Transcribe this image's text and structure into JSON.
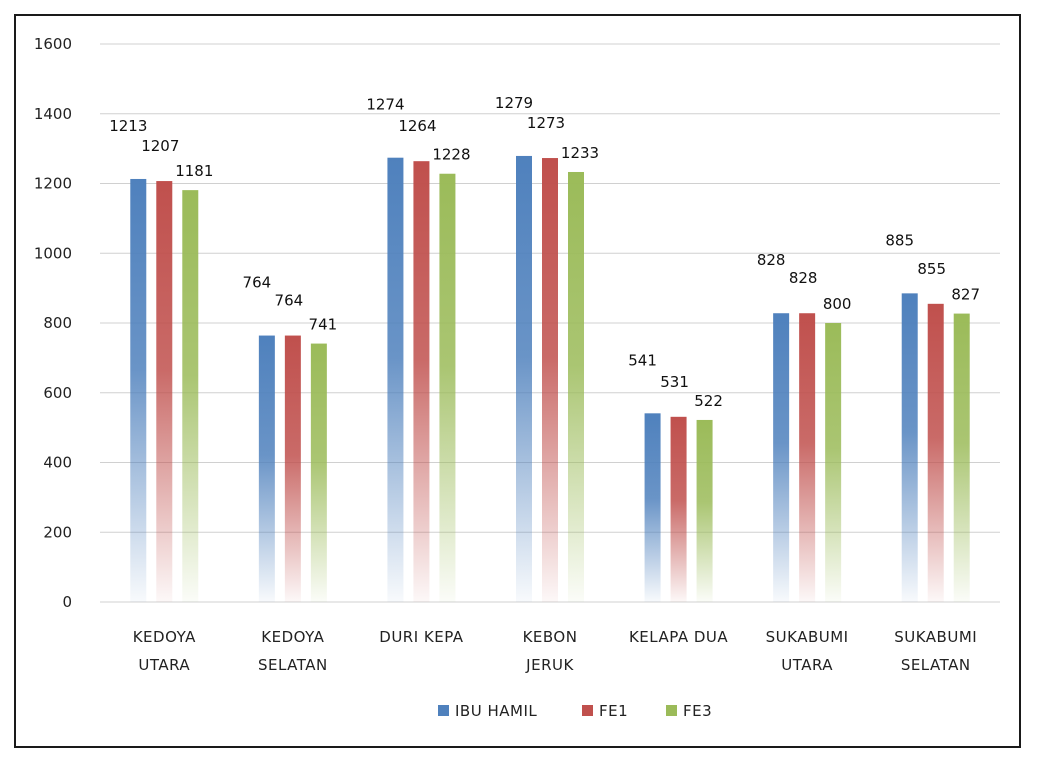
{
  "chart_data": {
    "type": "bar",
    "title": "",
    "xlabel": "",
    "ylabel": "",
    "ylim": [
      0,
      1600
    ],
    "yticks": [
      "0",
      "200",
      "400",
      "600",
      "800",
      "1000",
      "1200",
      "1400",
      "1600"
    ],
    "grid": true,
    "legend_position": "bottom",
    "categories": [
      [
        "KEDOYA",
        "UTARA"
      ],
      [
        "KEDOYA",
        "SELATAN"
      ],
      [
        "DURI KEPA"
      ],
      [
        "KEBON",
        "JERUK"
      ],
      [
        "KELAPA DUA"
      ],
      [
        "SUKABUMI",
        "UTARA"
      ],
      [
        "SUKABUMI",
        "SELATAN"
      ]
    ],
    "series": [
      {
        "name": "IBU HAMIL",
        "color": "#4f81bd",
        "values": [
          1213,
          764,
          1274,
          1279,
          541,
          828,
          885
        ]
      },
      {
        "name": "FE1",
        "color": "#c0504d",
        "values": [
          1207,
          764,
          1264,
          1273,
          531,
          828,
          855
        ]
      },
      {
        "name": "FE3",
        "color": "#9bbb59",
        "values": [
          1181,
          741,
          1228,
          1233,
          522,
          800,
          827
        ]
      }
    ]
  }
}
